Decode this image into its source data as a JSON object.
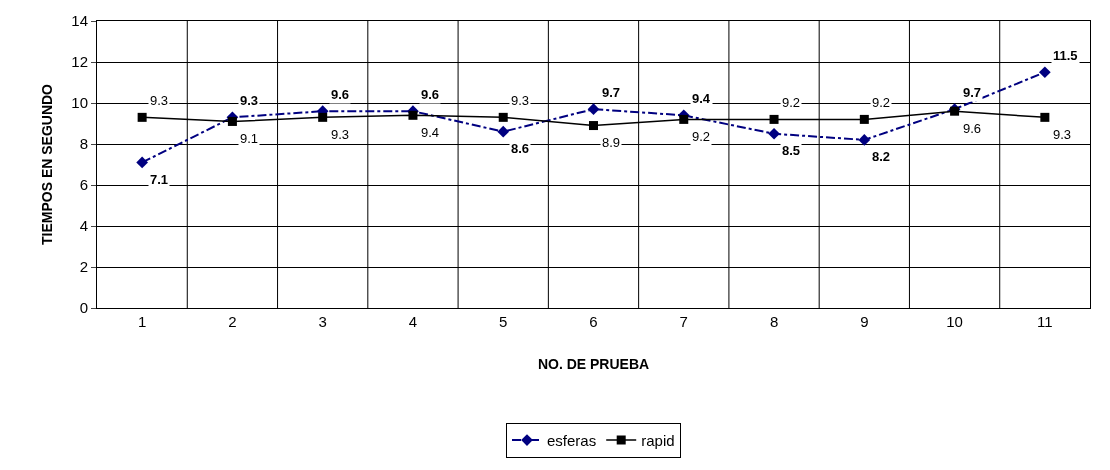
{
  "chart_data": {
    "type": "line",
    "xlabel": "NO. DE PRUEBA",
    "ylabel": "TIEMPOS EN SEGUNDO",
    "categories": [
      "1",
      "2",
      "3",
      "4",
      "5",
      "6",
      "7",
      "8",
      "9",
      "10",
      "11"
    ],
    "series": [
      {
        "name": "esferas",
        "color": "#000080",
        "marker": "diamond",
        "line_style": "dashdot",
        "values": [
          7.1,
          9.3,
          9.6,
          9.6,
          8.6,
          9.7,
          9.4,
          8.5,
          8.2,
          9.7,
          11.5
        ]
      },
      {
        "name": "rapid",
        "color": "#000000",
        "marker": "square",
        "line_style": "solid",
        "values": [
          9.3,
          9.1,
          9.3,
          9.4,
          9.3,
          8.9,
          9.2,
          9.2,
          9.2,
          9.6,
          9.3
        ]
      }
    ],
    "ylim": [
      0,
      14
    ],
    "yticks": [
      0,
      2,
      4,
      6,
      8,
      10,
      12,
      14
    ],
    "grid": true,
    "legend": "bottom",
    "data_labels": true
  }
}
